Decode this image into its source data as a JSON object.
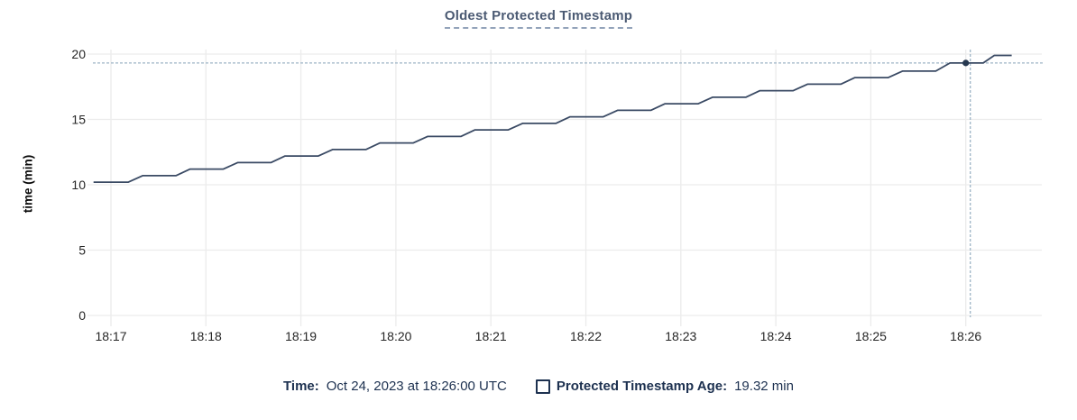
{
  "title": "Oldest Protected Timestamp",
  "y_axis_title": "time (min)",
  "tooltip": {
    "time_label": "Time:",
    "time_value": "Oct 24, 2023 at 18:26:00 UTC",
    "series_label": "Protected Timestamp Age:",
    "series_value": "19.32 min"
  },
  "colors": {
    "title": "#4b5a73",
    "title_underline": "#93a3ba",
    "axis_text": "#262626",
    "grid": "#ececec",
    "series_line": "#3a4a64",
    "hover_dot": "#263850",
    "crosshair": "#9db4c6",
    "tooltip_text": "#1d3150"
  },
  "chart_data": {
    "type": "line",
    "title": "Oldest Protected Timestamp",
    "xlabel": "",
    "ylabel": "time (min)",
    "ylim": [
      0,
      20
    ],
    "y_ticks": [
      0,
      5,
      10,
      15,
      20
    ],
    "x_ticks": [
      "18:17",
      "18:18",
      "18:19",
      "18:20",
      "18:21",
      "18:22",
      "18:23",
      "18:24",
      "18:25",
      "18:26"
    ],
    "x_tick_interval_seconds": 60,
    "grid": true,
    "legend_position": "bottom",
    "hover": {
      "time": "18:26:00",
      "t_seconds_from_18_17": 540,
      "value_min": 19.32
    },
    "series": [
      {
        "name": "Protected Timestamp Age",
        "unit": "min",
        "points_t_seconds_from_18_17_v_min": [
          [
            -11,
            10.2
          ],
          [
            11,
            10.2
          ],
          [
            20,
            10.7
          ],
          [
            41,
            10.7
          ],
          [
            50,
            11.2
          ],
          [
            71,
            11.2
          ],
          [
            80,
            11.7
          ],
          [
            101,
            11.7
          ],
          [
            110,
            12.2
          ],
          [
            131,
            12.2
          ],
          [
            140,
            12.7
          ],
          [
            161,
            12.7
          ],
          [
            170,
            13.2
          ],
          [
            191,
            13.2
          ],
          [
            200,
            13.7
          ],
          [
            221,
            13.7
          ],
          [
            230,
            14.2
          ],
          [
            251,
            14.2
          ],
          [
            260,
            14.7
          ],
          [
            281,
            14.7
          ],
          [
            290,
            15.2
          ],
          [
            311,
            15.2
          ],
          [
            320,
            15.7
          ],
          [
            341,
            15.7
          ],
          [
            350,
            16.2
          ],
          [
            371,
            16.2
          ],
          [
            380,
            16.7
          ],
          [
            401,
            16.7
          ],
          [
            410,
            17.2
          ],
          [
            431,
            17.2
          ],
          [
            440,
            17.7
          ],
          [
            461,
            17.7
          ],
          [
            470,
            18.2
          ],
          [
            491,
            18.2
          ],
          [
            500,
            18.7
          ],
          [
            521,
            18.7
          ],
          [
            530,
            19.32
          ],
          [
            551,
            19.32
          ],
          [
            558,
            19.9
          ],
          [
            569,
            19.9
          ]
        ]
      }
    ]
  }
}
